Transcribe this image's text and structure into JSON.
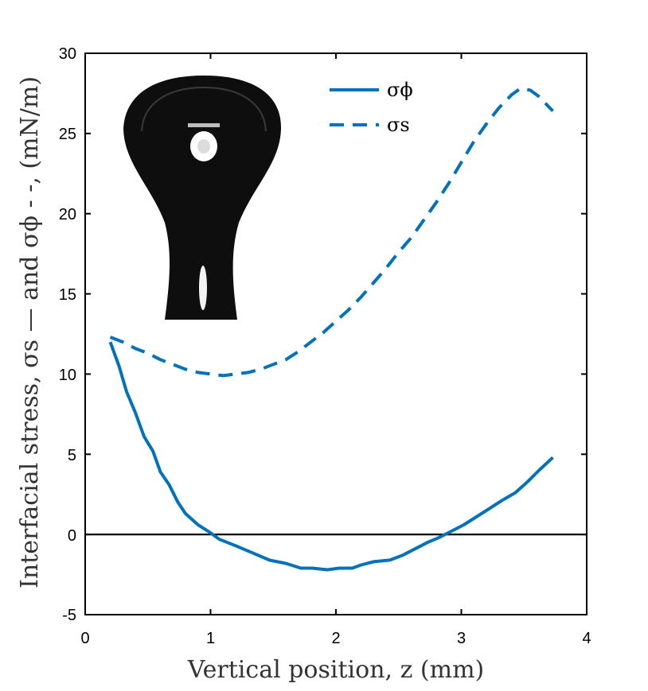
{
  "chart_data": {
    "type": "line",
    "xlabel": "Vertical position, z (mm)",
    "ylabel": "Interfacial stress, σs — and σϕ - -, (mN/m)",
    "xlim": [
      0,
      4
    ],
    "ylim": [
      -5,
      30
    ],
    "x_ticks": [
      "0",
      "1",
      "2",
      "3",
      "4"
    ],
    "y_ticks": [
      "-5",
      "0",
      "5",
      "10",
      "15",
      "20",
      "25",
      "30"
    ],
    "zero_line": 0,
    "grid": false,
    "legend_position": "top-right",
    "inset_image": "pendant-drop-photo",
    "series": [
      {
        "name": "σϕ",
        "style": "solid",
        "color": "#0072bd",
        "x": [
          0.2,
          0.27,
          0.33,
          0.4,
          0.47,
          0.54,
          0.6,
          0.67,
          0.74,
          0.8,
          0.9,
          1.0,
          1.07,
          1.2,
          1.35,
          1.47,
          1.6,
          1.72,
          1.81,
          1.93,
          2.03,
          2.13,
          2.2,
          2.3,
          2.43,
          2.53,
          2.63,
          2.73,
          2.82,
          2.92,
          3.02,
          3.12,
          3.22,
          3.32,
          3.43,
          3.53,
          3.62,
          3.73
        ],
        "y": [
          12.0,
          10.5,
          8.9,
          7.6,
          6.1,
          5.2,
          3.9,
          3.1,
          2.0,
          1.3,
          0.6,
          0.1,
          -0.3,
          -0.7,
          -1.2,
          -1.6,
          -1.8,
          -2.1,
          -2.1,
          -2.2,
          -2.1,
          -2.1,
          -1.9,
          -1.7,
          -1.6,
          -1.3,
          -0.9,
          -0.5,
          -0.2,
          0.2,
          0.6,
          1.1,
          1.6,
          2.1,
          2.6,
          3.3,
          4.0,
          4.8
        ]
      },
      {
        "name": "σs",
        "style": "dashed",
        "color": "#0072bd",
        "x": [
          0.2,
          0.3,
          0.4,
          0.5,
          0.6,
          0.7,
          0.8,
          0.9,
          1.0,
          1.1,
          1.2,
          1.3,
          1.4,
          1.5,
          1.6,
          1.7,
          1.8,
          1.9,
          2.0,
          2.1,
          2.2,
          2.3,
          2.4,
          2.5,
          2.6,
          2.7,
          2.8,
          2.9,
          3.0,
          3.1,
          3.2,
          3.3,
          3.4,
          3.47,
          3.55,
          3.62,
          3.68,
          3.73
        ],
        "y": [
          12.3,
          12.0,
          11.6,
          11.3,
          10.9,
          10.6,
          10.3,
          10.1,
          10.0,
          9.9,
          10.0,
          10.1,
          10.3,
          10.6,
          10.9,
          11.4,
          12.0,
          12.6,
          13.3,
          14.0,
          14.8,
          15.7,
          16.6,
          17.6,
          18.5,
          19.6,
          20.7,
          21.9,
          23.2,
          24.5,
          25.6,
          26.6,
          27.4,
          27.8,
          27.7,
          27.3,
          26.8,
          26.4
        ]
      }
    ]
  }
}
